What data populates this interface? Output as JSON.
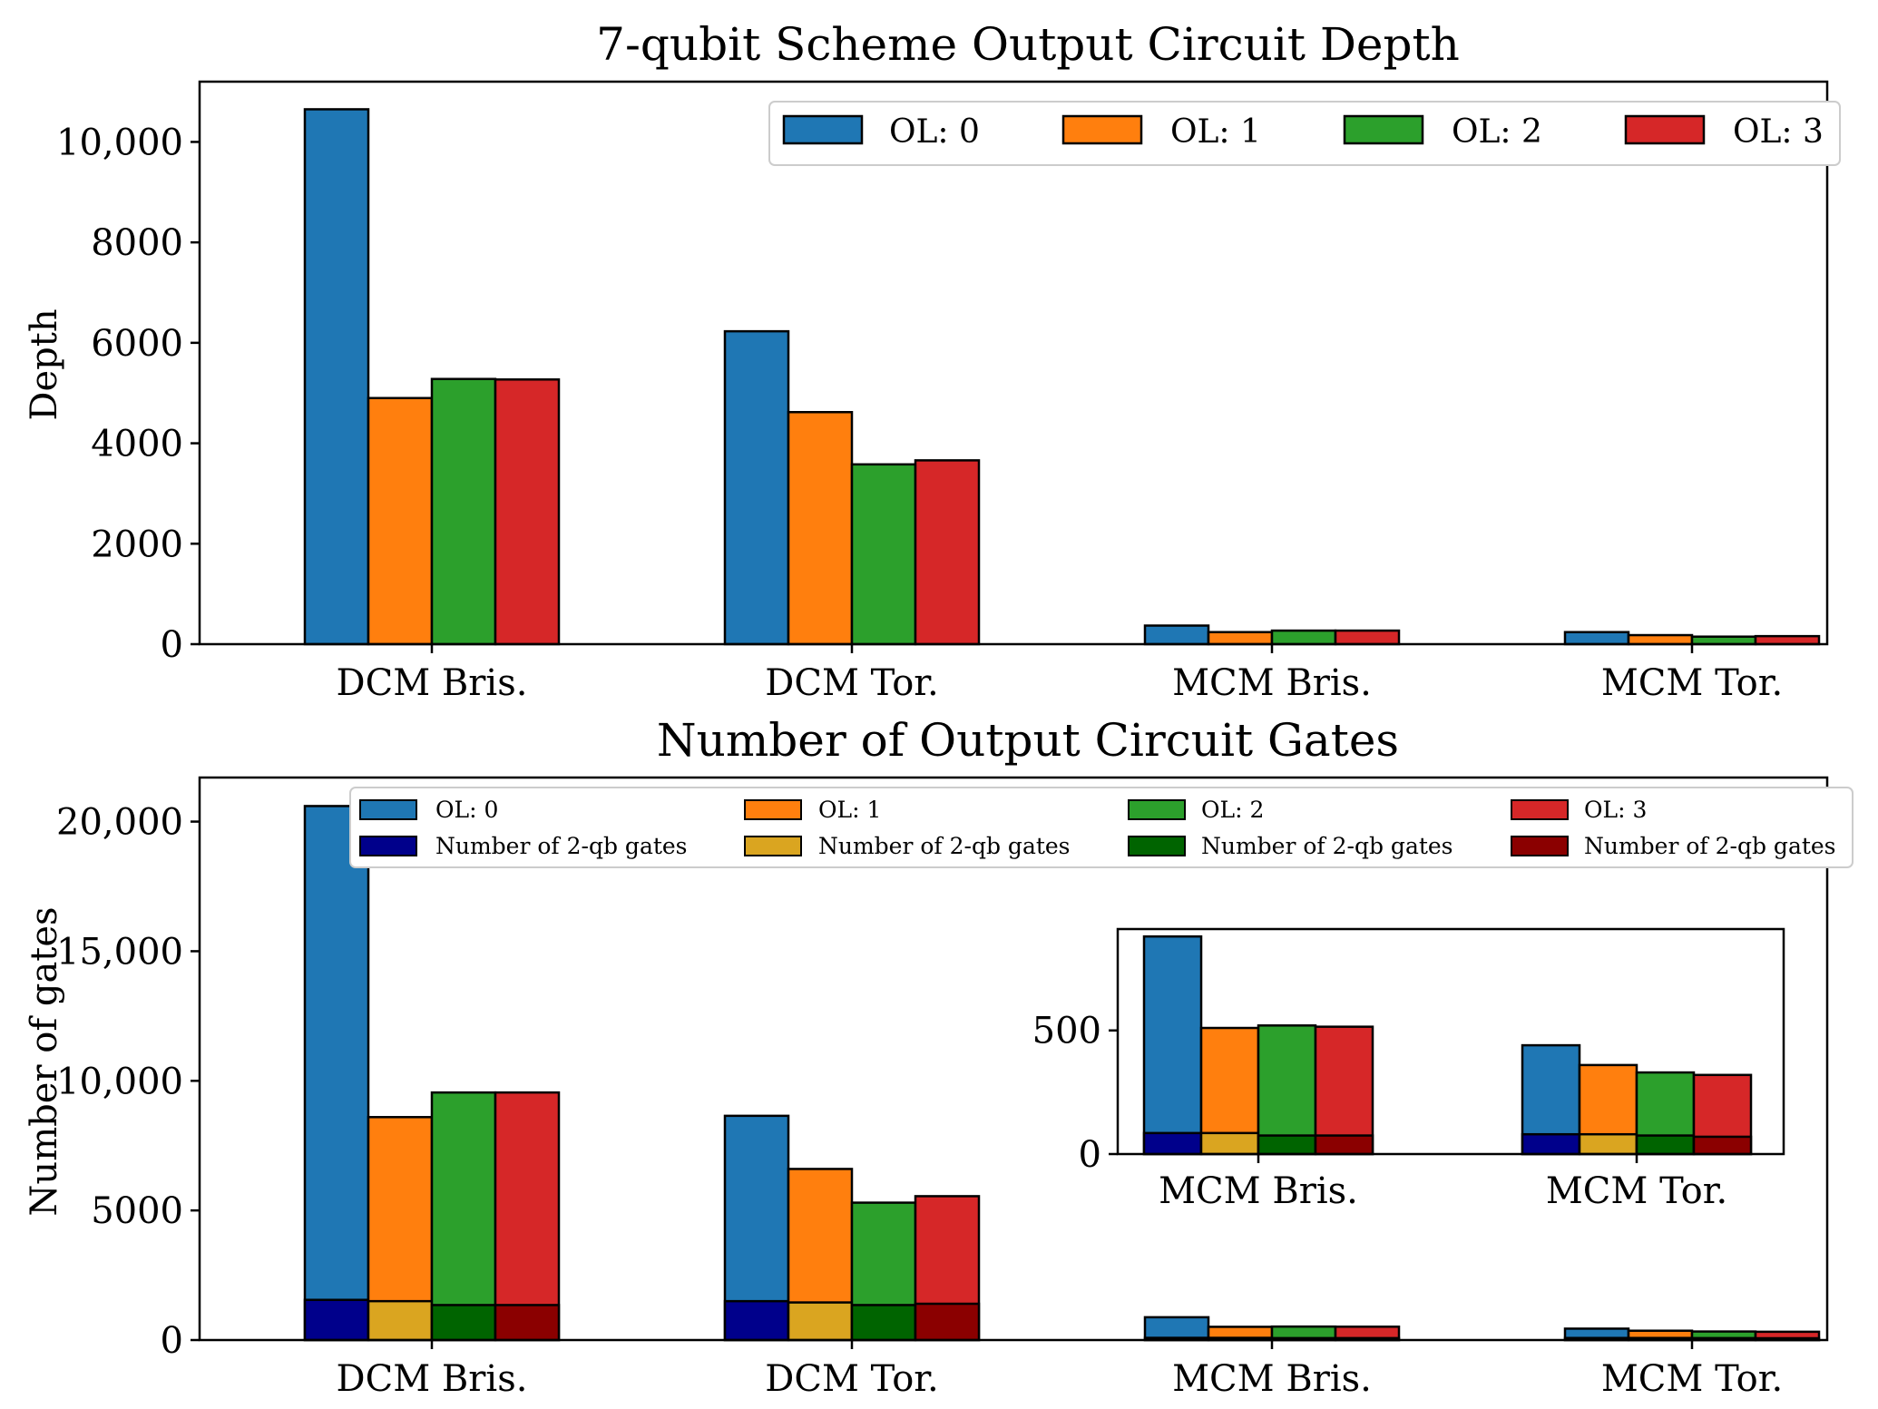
{
  "colors": {
    "ol0": "#1f77b4",
    "ol1": "#ff7f0e",
    "ol2": "#2ca02c",
    "ol3": "#d62728",
    "two_qb_ol0": "#00008b",
    "two_qb_ol1": "#daa520",
    "two_qb_ol2": "#006400",
    "two_qb_ol3": "#8b0000"
  },
  "chart_data": [
    {
      "type": "bar",
      "title": "7-qubit Scheme Output Circuit Depth",
      "xlabel": "",
      "ylabel": "Depth",
      "categories": [
        "DCM Bris.",
        "DCM Tor.",
        "MCM Bris.",
        "MCM Tor."
      ],
      "ylim": [
        0,
        11200
      ],
      "yticks": [
        0,
        2000,
        4000,
        6000,
        8000,
        10000
      ],
      "ytick_labels": [
        "0",
        "2000",
        "4000",
        "6000",
        "8000",
        "10,000"
      ],
      "legend_position": "top-right",
      "series": [
        {
          "name": "OL: 0",
          "values": [
            10650,
            6230,
            370,
            240
          ]
        },
        {
          "name": "OL: 1",
          "values": [
            4900,
            4620,
            240,
            180
          ]
        },
        {
          "name": "OL: 2",
          "values": [
            5280,
            3580,
            270,
            150
          ]
        },
        {
          "name": "OL: 3",
          "values": [
            5270,
            3660,
            270,
            160
          ]
        }
      ]
    },
    {
      "type": "bar",
      "title": "Number of Output Circuit Gates",
      "xlabel": "",
      "ylabel": "Number of gates",
      "categories": [
        "DCM Bris.",
        "DCM Tor.",
        "MCM Bris.",
        "MCM Tor."
      ],
      "ylim": [
        0,
        21700
      ],
      "yticks": [
        0,
        5000,
        10000,
        15000,
        20000
      ],
      "ytick_labels": [
        "0",
        "5000",
        "10,000",
        "15,000",
        "20,000"
      ],
      "legend_position": "top",
      "series": [
        {
          "name": "OL: 0",
          "values": [
            20600,
            8650,
            880,
            440
          ]
        },
        {
          "name": "OL: 1",
          "values": [
            8600,
            6600,
            510,
            360
          ]
        },
        {
          "name": "OL: 2",
          "values": [
            9550,
            5300,
            520,
            330
          ]
        },
        {
          "name": "OL: 3",
          "values": [
            9550,
            5550,
            515,
            320
          ]
        }
      ],
      "two_qubit_series": [
        {
          "name": "Number of 2-qb gates",
          "values": [
            1550,
            1500,
            85,
            80
          ]
        },
        {
          "name": "Number of 2-qb gates",
          "values": [
            1500,
            1450,
            85,
            80
          ]
        },
        {
          "name": "Number of 2-qb gates",
          "values": [
            1350,
            1350,
            75,
            75
          ]
        },
        {
          "name": "Number of 2-qb gates",
          "values": [
            1350,
            1400,
            75,
            70
          ]
        }
      ],
      "inset": {
        "categories": [
          "MCM Bris.",
          "MCM Tor."
        ],
        "ylim": [
          0,
          910
        ],
        "yticks": [
          0,
          500
        ],
        "ytick_labels": [
          "0",
          "500"
        ],
        "series": [
          {
            "name": "OL: 0",
            "values": [
              880,
              440
            ]
          },
          {
            "name": "OL: 1",
            "values": [
              510,
              360
            ]
          },
          {
            "name": "OL: 2",
            "values": [
              520,
              330
            ]
          },
          {
            "name": "OL: 3",
            "values": [
              515,
              320
            ]
          }
        ],
        "two_qubit_series": [
          {
            "name": "Number of 2-qb gates",
            "values": [
              85,
              80
            ]
          },
          {
            "name": "Number of 2-qb gates",
            "values": [
              85,
              80
            ]
          },
          {
            "name": "Number of 2-qb gates",
            "values": [
              75,
              75
            ]
          },
          {
            "name": "Number of 2-qb gates",
            "values": [
              75,
              70
            ]
          }
        ]
      }
    }
  ]
}
